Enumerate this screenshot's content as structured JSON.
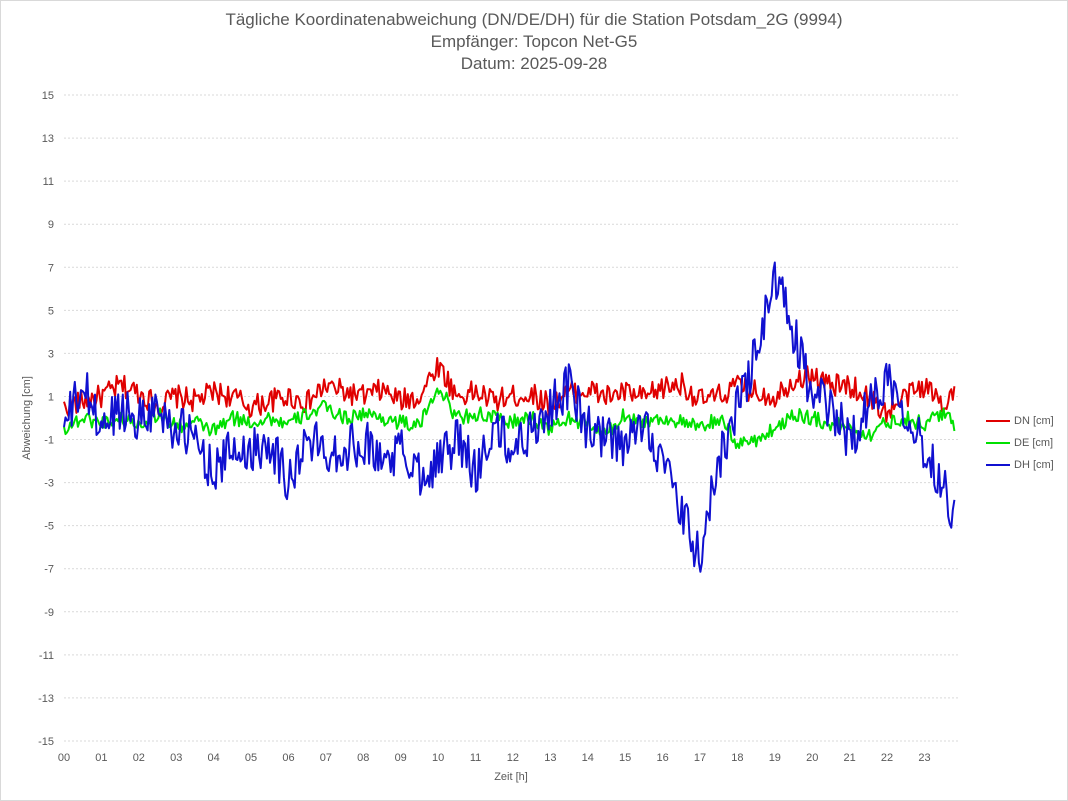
{
  "chart_data": {
    "type": "line",
    "title": "Tägliche Koordinatenabweichung (DN/DE/DH) für die Station Potsdam_2G (9994)",
    "subtitle_1": "Empfänger: Topcon Net-G5",
    "subtitle_2": "Datum: 2025-09-28",
    "xlabel": "Zeit [h]",
    "ylabel": "Abweichung [cm]",
    "xlim": [
      0,
      24
    ],
    "ylim": [
      -15,
      15
    ],
    "x_ticks": [
      "00",
      "01",
      "02",
      "03",
      "04",
      "05",
      "06",
      "07",
      "08",
      "09",
      "10",
      "11",
      "12",
      "13",
      "14",
      "15",
      "16",
      "17",
      "18",
      "19",
      "20",
      "21",
      "22",
      "23"
    ],
    "y_ticks": [
      15,
      13,
      11,
      9,
      7,
      5,
      3,
      1,
      -1,
      -3,
      -5,
      -7,
      -9,
      -11,
      -13,
      -15
    ],
    "grid": "horizontal dotted",
    "legend_position": "right",
    "colors": {
      "DN": "#e00000",
      "DE": "#00e000",
      "DH": "#1010d0"
    },
    "series": [
      {
        "name": "DN [cm]",
        "x": [
          0,
          0.5,
          1,
          1.5,
          2,
          2.5,
          3,
          3.5,
          4,
          4.5,
          5,
          5.5,
          6,
          6.5,
          7,
          7.5,
          8,
          8.5,
          9,
          9.5,
          10,
          10.5,
          11,
          11.5,
          12,
          12.5,
          13,
          13.5,
          14,
          14.5,
          15,
          15.5,
          16,
          16.5,
          17,
          17.5,
          18,
          18.5,
          19,
          19.5,
          20,
          20.5,
          21,
          21.5,
          22,
          22.5,
          23,
          23.5,
          23.8
        ],
        "values": [
          0.5,
          0.8,
          1.0,
          1.5,
          1.2,
          0.6,
          1.0,
          0.8,
          1.2,
          1.0,
          0.5,
          0.8,
          1.0,
          0.7,
          1.5,
          1.2,
          1.0,
          1.3,
          0.8,
          1.0,
          2.5,
          1.0,
          1.2,
          0.8,
          1.0,
          1.1,
          0.6,
          1.2,
          1.3,
          1.0,
          1.2,
          0.9,
          1.4,
          1.6,
          0.8,
          1.0,
          1.5,
          1.2,
          1.0,
          1.8,
          2.0,
          1.5,
          1.5,
          1.0,
          0.2,
          1.0,
          1.5,
          0.7,
          1.4
        ]
      },
      {
        "name": "DE [cm]",
        "x": [
          0,
          0.5,
          1,
          1.5,
          2,
          2.5,
          3,
          3.5,
          4,
          4.5,
          5,
          5.5,
          6,
          6.5,
          7,
          7.5,
          8,
          8.5,
          9,
          9.5,
          10,
          10.5,
          11,
          11.5,
          12,
          12.5,
          13,
          13.5,
          14,
          14.5,
          15,
          15.5,
          16,
          16.5,
          17,
          17.5,
          18,
          18.5,
          19,
          19.5,
          20,
          20.5,
          21,
          21.5,
          22,
          22.5,
          23,
          23.5,
          23.8
        ],
        "values": [
          -0.5,
          0.0,
          -0.2,
          0.0,
          -0.3,
          0.2,
          -0.4,
          -0.2,
          -0.6,
          0.0,
          -0.2,
          0.0,
          -0.3,
          0.2,
          0.5,
          0.0,
          0.2,
          0.0,
          -0.2,
          -0.4,
          1.5,
          0.0,
          0.2,
          0.0,
          -0.2,
          0.0,
          -0.5,
          0.0,
          -0.3,
          -0.8,
          0.2,
          -0.2,
          0.0,
          -0.2,
          -0.5,
          0.0,
          -1.2,
          -1.0,
          -0.5,
          0.2,
          0.0,
          -0.3,
          -0.4,
          -0.8,
          -0.2,
          0.0,
          -0.3,
          0.3,
          -0.4
        ]
      },
      {
        "name": "DH [cm]",
        "x": [
          0,
          0.5,
          1,
          1.5,
          2,
          2.5,
          3,
          3.5,
          4,
          4.5,
          5,
          5.5,
          6,
          6.5,
          7,
          7.5,
          8,
          8.5,
          9,
          9.5,
          10,
          10.5,
          11,
          11.5,
          12,
          12.5,
          13,
          13.5,
          14,
          14.5,
          15,
          15.5,
          16,
          16.5,
          17,
          17.5,
          18,
          18.5,
          19,
          19.5,
          20,
          20.5,
          21,
          21.5,
          22,
          22.5,
          23,
          23.5,
          23.8
        ],
        "values": [
          -0.5,
          1.5,
          -0.5,
          0.5,
          0.0,
          0.5,
          -0.5,
          -1.0,
          -2.5,
          -1.5,
          -1.5,
          -1.0,
          -3.0,
          -1.0,
          -1.5,
          -1.5,
          -1.0,
          -2.0,
          -1.5,
          -2.5,
          -2.0,
          -1.0,
          -2.5,
          -0.5,
          -1.5,
          -0.5,
          0.5,
          1.5,
          -0.5,
          -1.0,
          -1.5,
          0.0,
          -2.0,
          -4.5,
          -6.5,
          -2.0,
          0.5,
          3.0,
          6.5,
          4.0,
          1.0,
          0.5,
          -1.0,
          0.5,
          2.0,
          0.5,
          -1.5,
          -3.0,
          -4.5
        ]
      }
    ]
  }
}
